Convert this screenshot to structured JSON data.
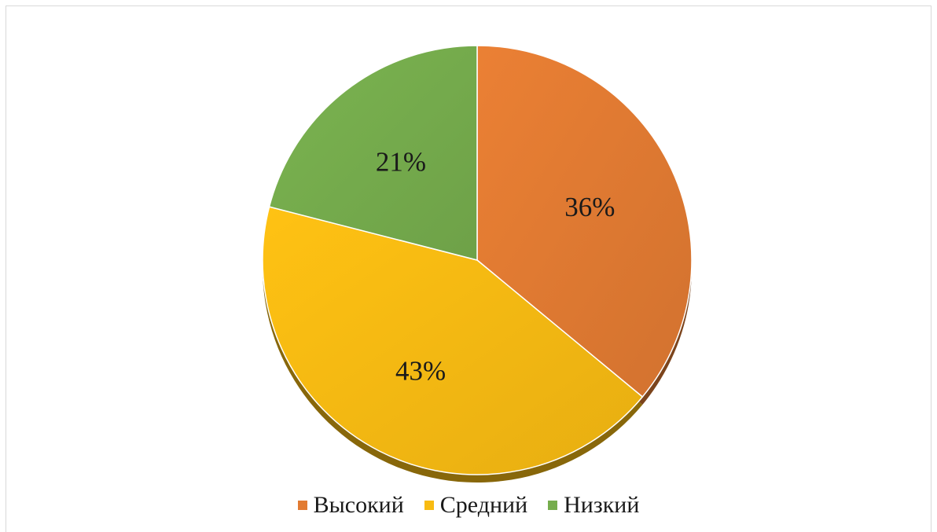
{
  "chart_data": {
    "type": "pie",
    "title": "",
    "start_angle_deg": 0,
    "direction": "clockwise",
    "legend_position": "bottom",
    "slices": [
      {
        "name": "Высокий",
        "value": 36,
        "label": "36%",
        "color": "#e27b32"
      },
      {
        "name": "Средний",
        "value": 43,
        "label": "43%",
        "color": "#f8bb12"
      },
      {
        "name": "Низкий",
        "value": 21,
        "label": "21%",
        "color": "#76ad4d"
      }
    ]
  }
}
